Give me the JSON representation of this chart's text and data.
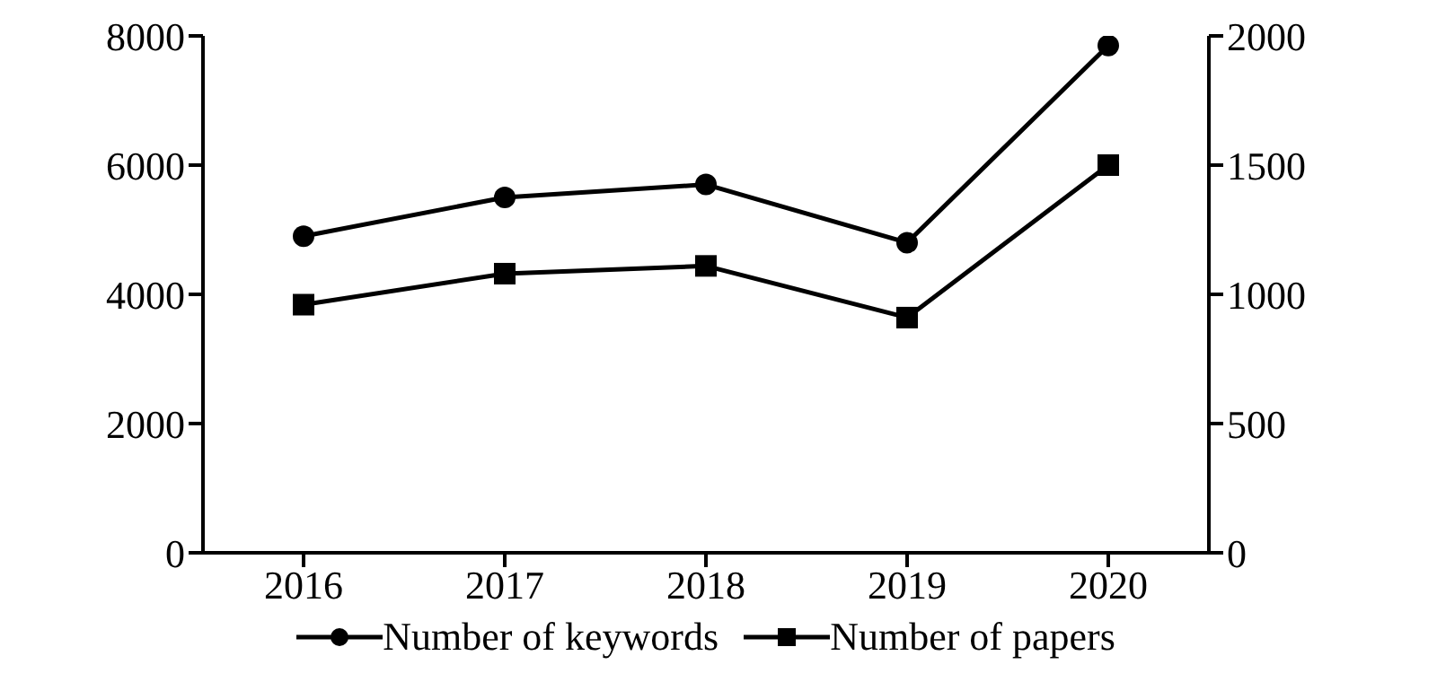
{
  "chart_data": {
    "type": "line",
    "categories": [
      "2016",
      "2017",
      "2018",
      "2019",
      "2020"
    ],
    "series": [
      {
        "name": "Number of keywords",
        "color": "#000000",
        "marker": "circle",
        "values": [
          4900,
          5500,
          5700,
          4800,
          7850
        ]
      },
      {
        "name": "Number of papers",
        "color": "#000000",
        "marker": "square",
        "axis": "y2",
        "values": [
          960,
          1080,
          1110,
          910,
          1500
        ]
      }
    ],
    "ylim": [
      0,
      8000
    ],
    "yticks": [
      0,
      2000,
      4000,
      6000,
      8000
    ],
    "y2lim": [
      0,
      2000
    ],
    "y2ticks": [
      0,
      500,
      1000,
      1500,
      2000
    ],
    "grid": false,
    "legend": "bottom"
  }
}
